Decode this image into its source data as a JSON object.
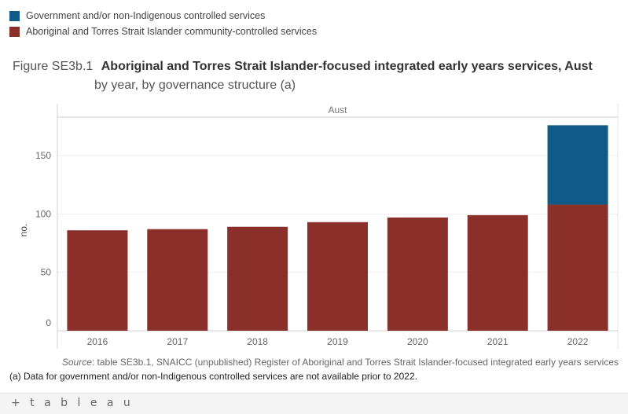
{
  "legend": [
    {
      "label": "Government and/or non-Indigenous controlled services",
      "color": "#0f5a87"
    },
    {
      "label": "Aboriginal and Torres Strait Islander community-controlled services",
      "color": "#8b2f2a"
    }
  ],
  "title": {
    "figure_label": "Figure SE3b.1",
    "main": "Aboriginal and Torres Strait Islander-focused integrated early years services, Aust",
    "subtitle": "by year, by governance structure (a)"
  },
  "chart_data": {
    "type": "bar",
    "stacked": true,
    "panel_header": "Aust",
    "categories": [
      "2016",
      "2017",
      "2018",
      "2019",
      "2020",
      "2021",
      "2022"
    ],
    "series": [
      {
        "name": "Aboriginal and Torres Strait Islander community-controlled services",
        "color": "#8b2f2a",
        "values": [
          86,
          87,
          89,
          93,
          97,
          99,
          108
        ]
      },
      {
        "name": "Government and/or non-Indigenous controlled services",
        "color": "#0f5a87",
        "values": [
          0,
          0,
          0,
          0,
          0,
          0,
          68
        ]
      }
    ],
    "ylabel": "no.",
    "yticks": [
      0,
      50,
      100,
      150
    ],
    "ylim": [
      0,
      183
    ],
    "grid": true
  },
  "source": {
    "label": "Source",
    "text": ": table SE3b.1, SNAICC (unpublished) Register of Aboriginal and Torres Strait Islander-focused integrated early years services"
  },
  "footnote": "(a) Data for government and/or non-Indigenous controlled services are not available prior to 2022.",
  "branding": {
    "logo_text": "+ t a b l e a u"
  }
}
